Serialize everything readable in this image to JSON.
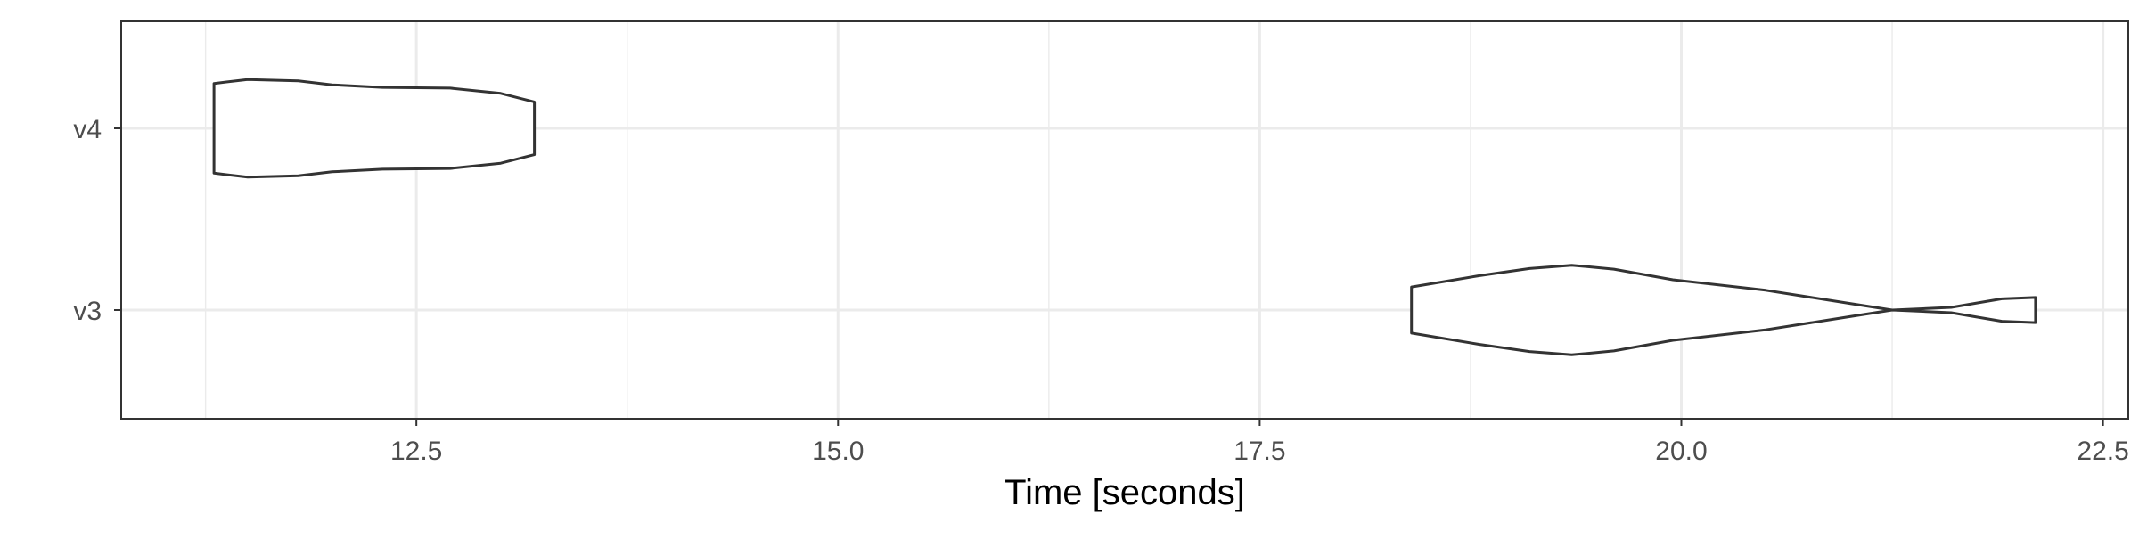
{
  "chart_data": {
    "type": "violin",
    "orientation": "horizontal",
    "title": "",
    "xlabel": "Time [seconds]",
    "ylabel": "",
    "xlim": [
      10.75,
      22.65
    ],
    "x_ticks": [
      12.5,
      15.0,
      17.5,
      20.0,
      22.5
    ],
    "x_tick_labels": [
      "12.5",
      "15.0",
      "17.5",
      "20.0",
      "22.5"
    ],
    "categories": [
      "v3",
      "v4"
    ],
    "grid": true,
    "legend": "none",
    "colors": {
      "outline": "#333333",
      "fill": "#ffffff",
      "grid": "#ebebeb",
      "panel_border": "#333333"
    },
    "series": [
      {
        "category": "v4",
        "min": 11.3,
        "max": 13.2,
        "density": [
          [
            11.3,
            0.68
          ],
          [
            11.5,
            0.74
          ],
          [
            11.8,
            0.72
          ],
          [
            12.0,
            0.66
          ],
          [
            12.3,
            0.62
          ],
          [
            12.7,
            0.61
          ],
          [
            13.0,
            0.53
          ],
          [
            13.2,
            0.4
          ]
        ]
      },
      {
        "category": "v3",
        "min": 18.4,
        "max": 22.1,
        "density": [
          [
            18.4,
            0.35
          ],
          [
            18.8,
            0.52
          ],
          [
            19.1,
            0.63
          ],
          [
            19.35,
            0.68
          ],
          [
            19.6,
            0.62
          ],
          [
            19.95,
            0.46
          ],
          [
            20.5,
            0.3
          ],
          [
            21.0,
            0.1
          ],
          [
            21.25,
            0.0
          ],
          [
            21.6,
            0.04
          ],
          [
            21.9,
            0.17
          ],
          [
            22.1,
            0.19
          ]
        ]
      }
    ]
  }
}
